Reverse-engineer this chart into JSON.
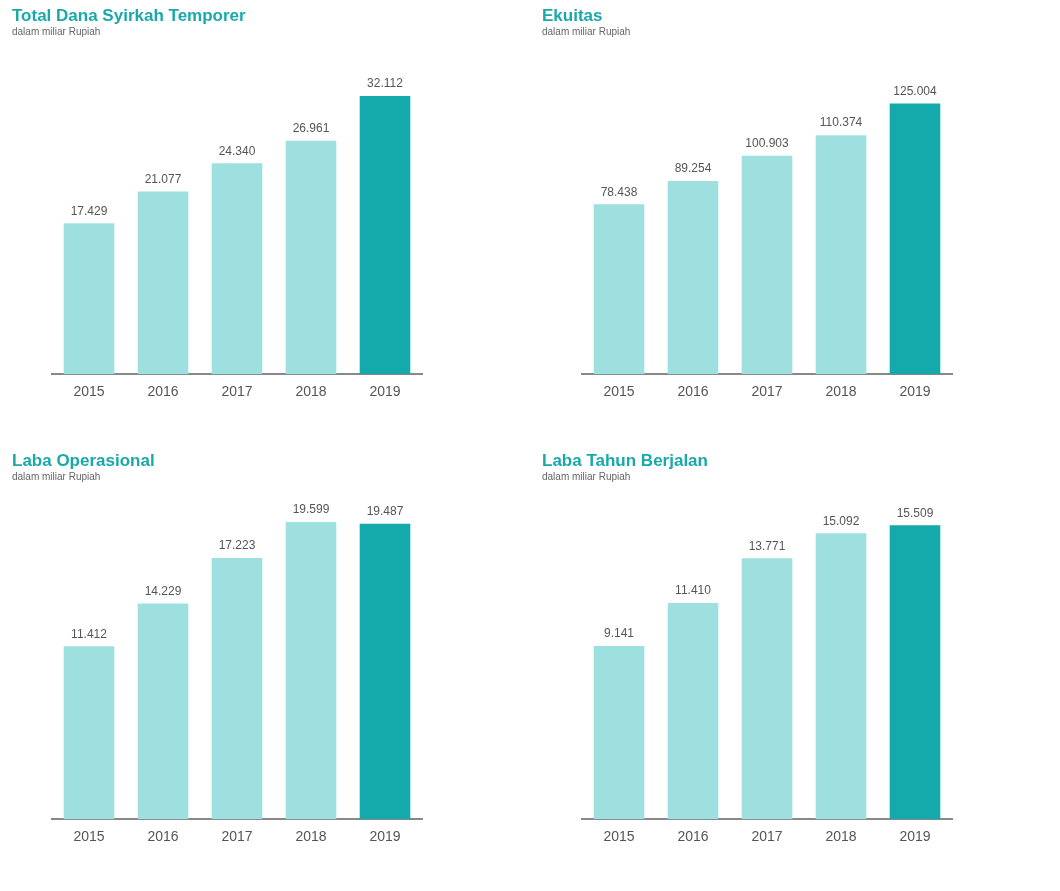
{
  "chart_data": [
    {
      "type": "bar",
      "title": "Total Dana Syirkah Temporer",
      "subtitle": "dalam miliar Rupiah",
      "categories": [
        "2015",
        "2016",
        "2017",
        "2018",
        "2019"
      ],
      "values": [
        17429,
        21077,
        24340,
        26961,
        32112
      ],
      "value_labels": [
        "17.429",
        "21.077",
        "24.340",
        "26.961",
        "32.112"
      ],
      "colors": [
        "#9ee0e0",
        "#9ee0e0",
        "#9ee0e0",
        "#9ee0e0",
        "#14a9aa"
      ],
      "tick_labels": "x",
      "grid": false,
      "legend": false
    },
    {
      "type": "bar",
      "title": "Ekuitas",
      "subtitle": "dalam miliar Rupiah",
      "categories": [
        "2015",
        "2016",
        "2017",
        "2018",
        "2019"
      ],
      "values": [
        78438,
        89254,
        100903,
        110374,
        125004
      ],
      "value_labels": [
        "78.438",
        "89.254",
        "100.903",
        "110.374",
        "125.004"
      ],
      "colors": [
        "#9ee0e0",
        "#9ee0e0",
        "#9ee0e0",
        "#9ee0e0",
        "#14a9aa"
      ],
      "tick_labels": "x",
      "grid": false,
      "legend": false
    },
    {
      "type": "bar",
      "title": "Laba Operasional",
      "subtitle": "dalam miliar Rupiah",
      "categories": [
        "2015",
        "2016",
        "2017",
        "2018",
        "2019"
      ],
      "values": [
        11412,
        14229,
        17223,
        19599,
        19487
      ],
      "value_labels": [
        "11.412",
        "14.229",
        "17.223",
        "19.599",
        "19.487"
      ],
      "colors": [
        "#9ee0e0",
        "#9ee0e0",
        "#9ee0e0",
        "#9ee0e0",
        "#14a9aa"
      ],
      "tick_labels": "x",
      "grid": false,
      "legend": false
    },
    {
      "type": "bar",
      "title": "Laba Tahun Berjalan",
      "subtitle": "dalam miliar Rupiah",
      "categories": [
        "2015",
        "2016",
        "2017",
        "2018",
        "2019"
      ],
      "values": [
        9141,
        11410,
        13771,
        15092,
        15509
      ],
      "value_labels": [
        "9.141",
        "11.410",
        "13.771",
        "15.092",
        "15.509"
      ],
      "colors": [
        "#9ee0e0",
        "#9ee0e0",
        "#9ee0e0",
        "#9ee0e0",
        "#14a9aa"
      ],
      "tick_labels": "x",
      "grid": false,
      "legend": false
    }
  ]
}
